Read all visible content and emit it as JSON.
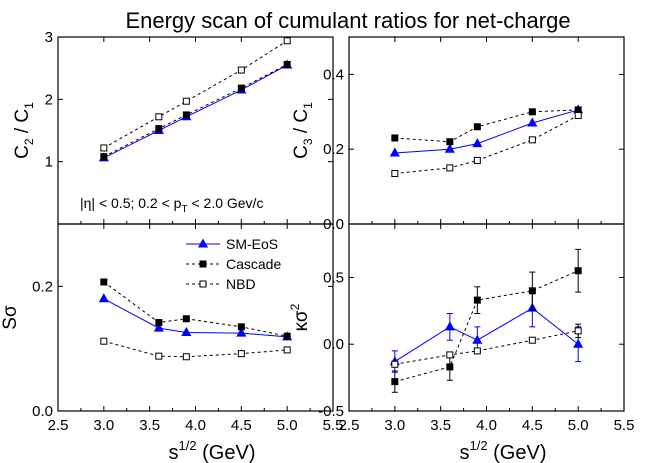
{
  "figure": {
    "title": "Energy scan of cumulant ratios for net-charge",
    "xlabel_base": "s",
    "xlabel_sup": "1/2",
    "xlabel_unit": " (GeV)",
    "annotation": {
      "part1": "|η| < 0.5; 0.2 < p",
      "sub": "T",
      "part2": " < 2.0 Gev/c"
    },
    "legend": [
      {
        "label": "SM-EoS",
        "color": "#0000ff",
        "marker": "filled-triangle",
        "line": "solid"
      },
      {
        "label": "Cascade",
        "color": "#000000",
        "marker": "filled-square",
        "line": "dashed"
      },
      {
        "label": "NBD",
        "color": "#000000",
        "marker": "open-square",
        "line": "dashed"
      }
    ]
  },
  "chart_data": [
    {
      "type": "line",
      "panel": "top-left",
      "ylabel": {
        "a": "C",
        "a_sub": "2",
        "sep": " / ",
        "b": "C",
        "b_sub": "1"
      },
      "xlim": [
        2.5,
        5.5
      ],
      "ylim": [
        0,
        3
      ],
      "xticks": [
        2.5,
        3.0,
        3.5,
        4.0,
        4.5,
        5.0,
        5.5
      ],
      "xtick_labels": [
        "2.5",
        "3.0",
        "3.5",
        "4.0",
        "4.5",
        "5.0",
        "5.5"
      ],
      "yticks": [
        0,
        1,
        2,
        3
      ],
      "ytick_labels": [
        "",
        "1",
        "2",
        "3"
      ],
      "x": [
        3.0,
        3.6,
        3.9,
        4.5,
        5.0
      ],
      "series": [
        {
          "name": "SM-EoS",
          "values": [
            1.06,
            1.5,
            1.72,
            2.15,
            2.55
          ]
        },
        {
          "name": "Cascade",
          "values": [
            1.08,
            1.53,
            1.75,
            2.18,
            2.56
          ]
        },
        {
          "name": "NBD",
          "values": [
            1.22,
            1.72,
            1.97,
            2.47,
            2.94
          ]
        }
      ]
    },
    {
      "type": "line",
      "panel": "top-right",
      "ylabel": {
        "a": "C",
        "a_sub": "3",
        "sep": " / ",
        "b": "C",
        "b_sub": "1"
      },
      "xlim": [
        2.5,
        5.5
      ],
      "ylim": [
        0,
        0.5
      ],
      "xticks": [
        2.5,
        3.0,
        3.5,
        4.0,
        4.5,
        5.0,
        5.5
      ],
      "xtick_labels": [
        "2.5",
        "3.0",
        "3.5",
        "4.0",
        "4.5",
        "5.0",
        "5.5"
      ],
      "yticks": [
        0,
        0.2,
        0.4
      ],
      "ytick_labels": [
        "0.0",
        "0.2",
        "0.4"
      ],
      "x": [
        3.0,
        3.6,
        3.9,
        4.5,
        5.0
      ],
      "series": [
        {
          "name": "SM-EoS",
          "values": [
            0.19,
            0.2,
            0.215,
            0.27,
            0.305
          ]
        },
        {
          "name": "Cascade",
          "values": [
            0.23,
            0.22,
            0.26,
            0.3,
            0.305
          ]
        },
        {
          "name": "NBD",
          "values": [
            0.135,
            0.15,
            0.17,
            0.225,
            0.29
          ]
        }
      ]
    },
    {
      "type": "line",
      "panel": "bottom-left",
      "ylabel": {
        "a": "S",
        "a_sub": "",
        "sep": "",
        "b": "σ",
        "b_sub": ""
      },
      "xlim": [
        2.5,
        5.5
      ],
      "ylim": [
        0,
        0.3
      ],
      "xticks": [
        2.5,
        3.0,
        3.5,
        4.0,
        4.5,
        5.0,
        5.5
      ],
      "xtick_labels": [
        "2.5",
        "3.0",
        "3.5",
        "4.0",
        "4.5",
        "5.0",
        "5.5"
      ],
      "yticks": [
        0,
        0.2
      ],
      "ytick_labels": [
        "0.0",
        "0.2"
      ],
      "x": [
        3.0,
        3.6,
        3.9,
        4.5,
        5.0
      ],
      "series": [
        {
          "name": "SM-EoS",
          "values": [
            0.18,
            0.133,
            0.126,
            0.125,
            0.119
          ]
        },
        {
          "name": "Cascade",
          "values": [
            0.207,
            0.142,
            0.148,
            0.135,
            0.12
          ]
        },
        {
          "name": "NBD",
          "values": [
            0.112,
            0.088,
            0.087,
            0.092,
            0.098
          ]
        }
      ]
    },
    {
      "type": "line",
      "panel": "bottom-right",
      "ylabel": {
        "a": "κσ",
        "a_sup": "2"
      },
      "xlim": [
        2.5,
        5.5
      ],
      "ylim": [
        -0.5,
        0.9
      ],
      "xticks": [
        2.5,
        3.0,
        3.5,
        4.0,
        4.5,
        5.0,
        5.5
      ],
      "xtick_labels": [
        "2.5",
        "3.0",
        "3.5",
        "4.0",
        "4.5",
        "5.0",
        "5.5"
      ],
      "yticks": [
        -0.5,
        0,
        0.5
      ],
      "ytick_labels": [
        "-0.5",
        "0.0",
        "0.5"
      ],
      "x": [
        3.0,
        3.6,
        3.9,
        4.5,
        5.0
      ],
      "series": [
        {
          "name": "SM-EoS",
          "values": [
            -0.13,
            0.13,
            0.03,
            0.27,
            0.0
          ],
          "errors": [
            0.08,
            0.1,
            0.1,
            0.14,
            0.13
          ]
        },
        {
          "name": "Cascade",
          "values": [
            -0.28,
            -0.17,
            0.33,
            0.4,
            0.55
          ],
          "errors": [
            0.08,
            0.1,
            0.1,
            0.14,
            0.16
          ]
        },
        {
          "name": "NBD",
          "values": [
            -0.15,
            -0.08,
            -0.05,
            0.03,
            0.1
          ],
          "errors": [
            0,
            0,
            0,
            0,
            0.05
          ]
        }
      ]
    }
  ]
}
